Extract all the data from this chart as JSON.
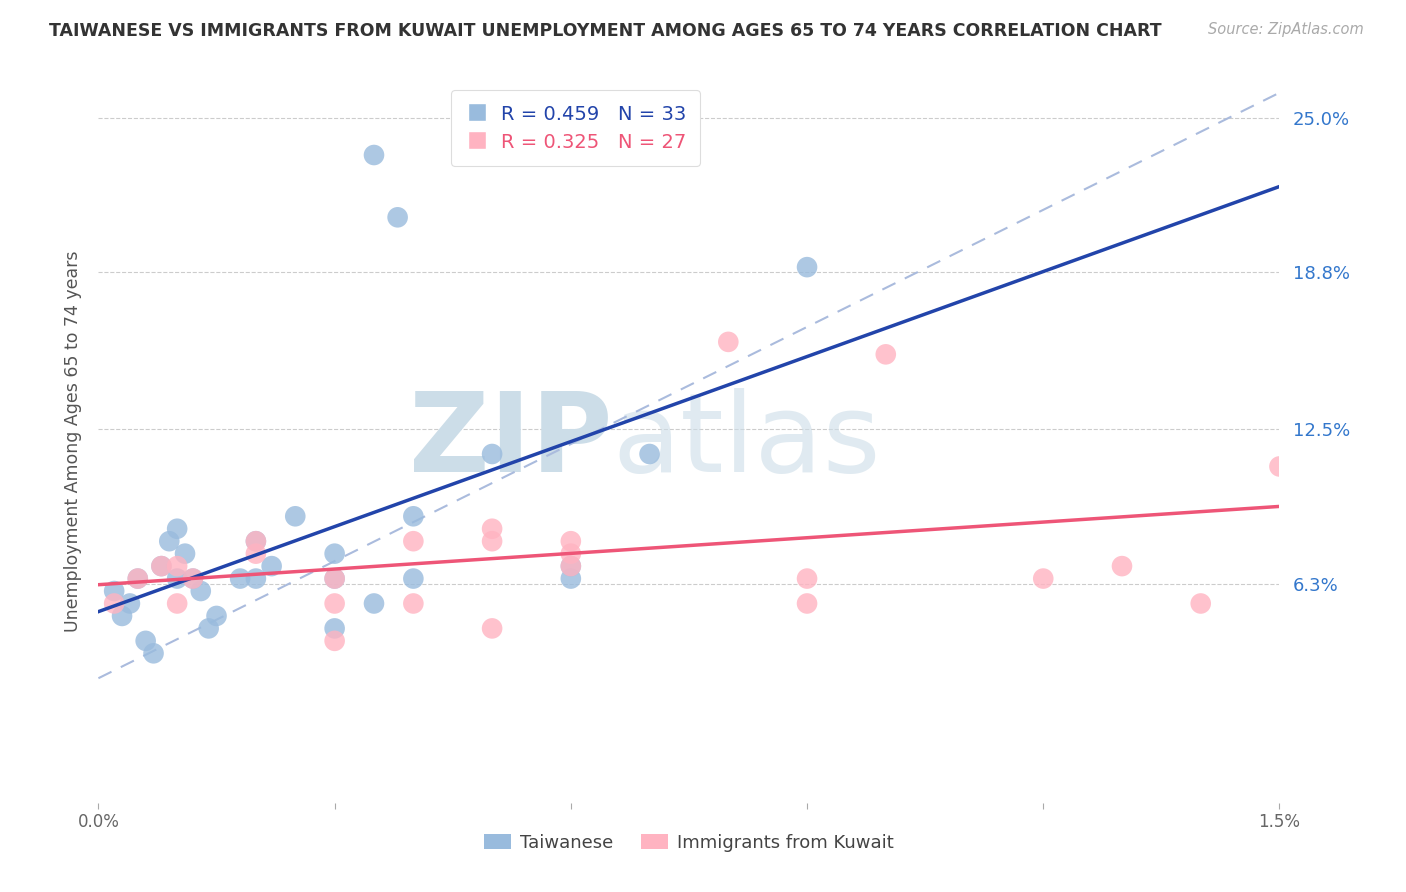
{
  "title": "TAIWANESE VS IMMIGRANTS FROM KUWAIT UNEMPLOYMENT AMONG AGES 65 TO 74 YEARS CORRELATION CHART",
  "source": "Source: ZipAtlas.com",
  "ylabel": "Unemployment Among Ages 65 to 74 years",
  "legend_blue_label": "Taiwanese",
  "legend_pink_label": "Immigrants from Kuwait",
  "R_blue": 0.459,
  "N_blue": 33,
  "R_pink": 0.325,
  "N_pink": 27,
  "x_min": 0.0,
  "x_max": 0.015,
  "y_min": -0.025,
  "y_max": 0.265,
  "y_ticks_right": [
    0.063,
    0.125,
    0.188,
    0.25
  ],
  "y_tick_labels_right": [
    "6.3%",
    "12.5%",
    "18.8%",
    "25.0%"
  ],
  "x_ticks": [
    0.0,
    0.003,
    0.006,
    0.009,
    0.012,
    0.015
  ],
  "x_tick_labels": [
    "0.0%",
    "",
    "",
    "",
    "",
    "1.5%"
  ],
  "blue_scatter_color": "#99BBDD",
  "pink_scatter_color": "#FFB3C1",
  "blue_line_color": "#2244AA",
  "pink_line_color": "#EE5577",
  "dashed_line_color": "#AABBDD",
  "grid_color": "#CCCCCC",
  "bg_color": "#FFFFFF",
  "blue_x": [
    0.0002,
    0.0003,
    0.0004,
    0.0005,
    0.0006,
    0.0007,
    0.0008,
    0.0009,
    0.001,
    0.001,
    0.0011,
    0.0012,
    0.0013,
    0.0014,
    0.0015,
    0.0018,
    0.002,
    0.002,
    0.0022,
    0.0025,
    0.003,
    0.003,
    0.003,
    0.0035,
    0.004,
    0.004,
    0.005,
    0.006,
    0.006,
    0.0035,
    0.0038,
    0.009,
    0.007
  ],
  "blue_y": [
    0.06,
    0.05,
    0.055,
    0.065,
    0.04,
    0.035,
    0.07,
    0.08,
    0.065,
    0.085,
    0.075,
    0.065,
    0.06,
    0.045,
    0.05,
    0.065,
    0.065,
    0.08,
    0.07,
    0.09,
    0.075,
    0.065,
    0.045,
    0.055,
    0.09,
    0.065,
    0.115,
    0.065,
    0.07,
    0.235,
    0.21,
    0.19,
    0.115
  ],
  "pink_x": [
    0.0002,
    0.0005,
    0.0008,
    0.001,
    0.001,
    0.0012,
    0.002,
    0.002,
    0.003,
    0.003,
    0.003,
    0.004,
    0.004,
    0.005,
    0.005,
    0.005,
    0.006,
    0.006,
    0.006,
    0.008,
    0.009,
    0.009,
    0.01,
    0.012,
    0.013,
    0.014,
    0.015
  ],
  "pink_y": [
    0.055,
    0.065,
    0.07,
    0.055,
    0.07,
    0.065,
    0.075,
    0.08,
    0.065,
    0.055,
    0.04,
    0.08,
    0.055,
    0.085,
    0.08,
    0.045,
    0.075,
    0.08,
    0.07,
    0.16,
    0.065,
    0.055,
    0.155,
    0.065,
    0.07,
    0.055,
    0.11
  ]
}
